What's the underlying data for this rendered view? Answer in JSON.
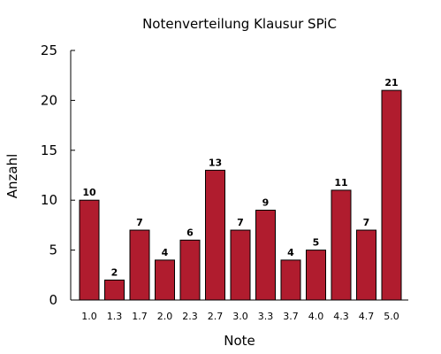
{
  "chart_data": {
    "type": "bar",
    "title": "Notenverteilung Klausur SPiC",
    "xlabel": "Note",
    "ylabel": "Anzahl",
    "categories": [
      "1.0",
      "1.3",
      "1.7",
      "2.0",
      "2.3",
      "2.7",
      "3.0",
      "3.3",
      "3.7",
      "4.0",
      "4.3",
      "4.7",
      "5.0"
    ],
    "values": [
      10,
      2,
      7,
      4,
      6,
      13,
      7,
      9,
      4,
      5,
      11,
      7,
      21
    ],
    "ylim": [
      0,
      25
    ],
    "yticks": [
      0,
      5,
      10,
      15,
      20,
      25
    ],
    "grid": false,
    "legend": "none",
    "bar_color": "#b01c2e",
    "bar_edge_color": "#000000"
  }
}
